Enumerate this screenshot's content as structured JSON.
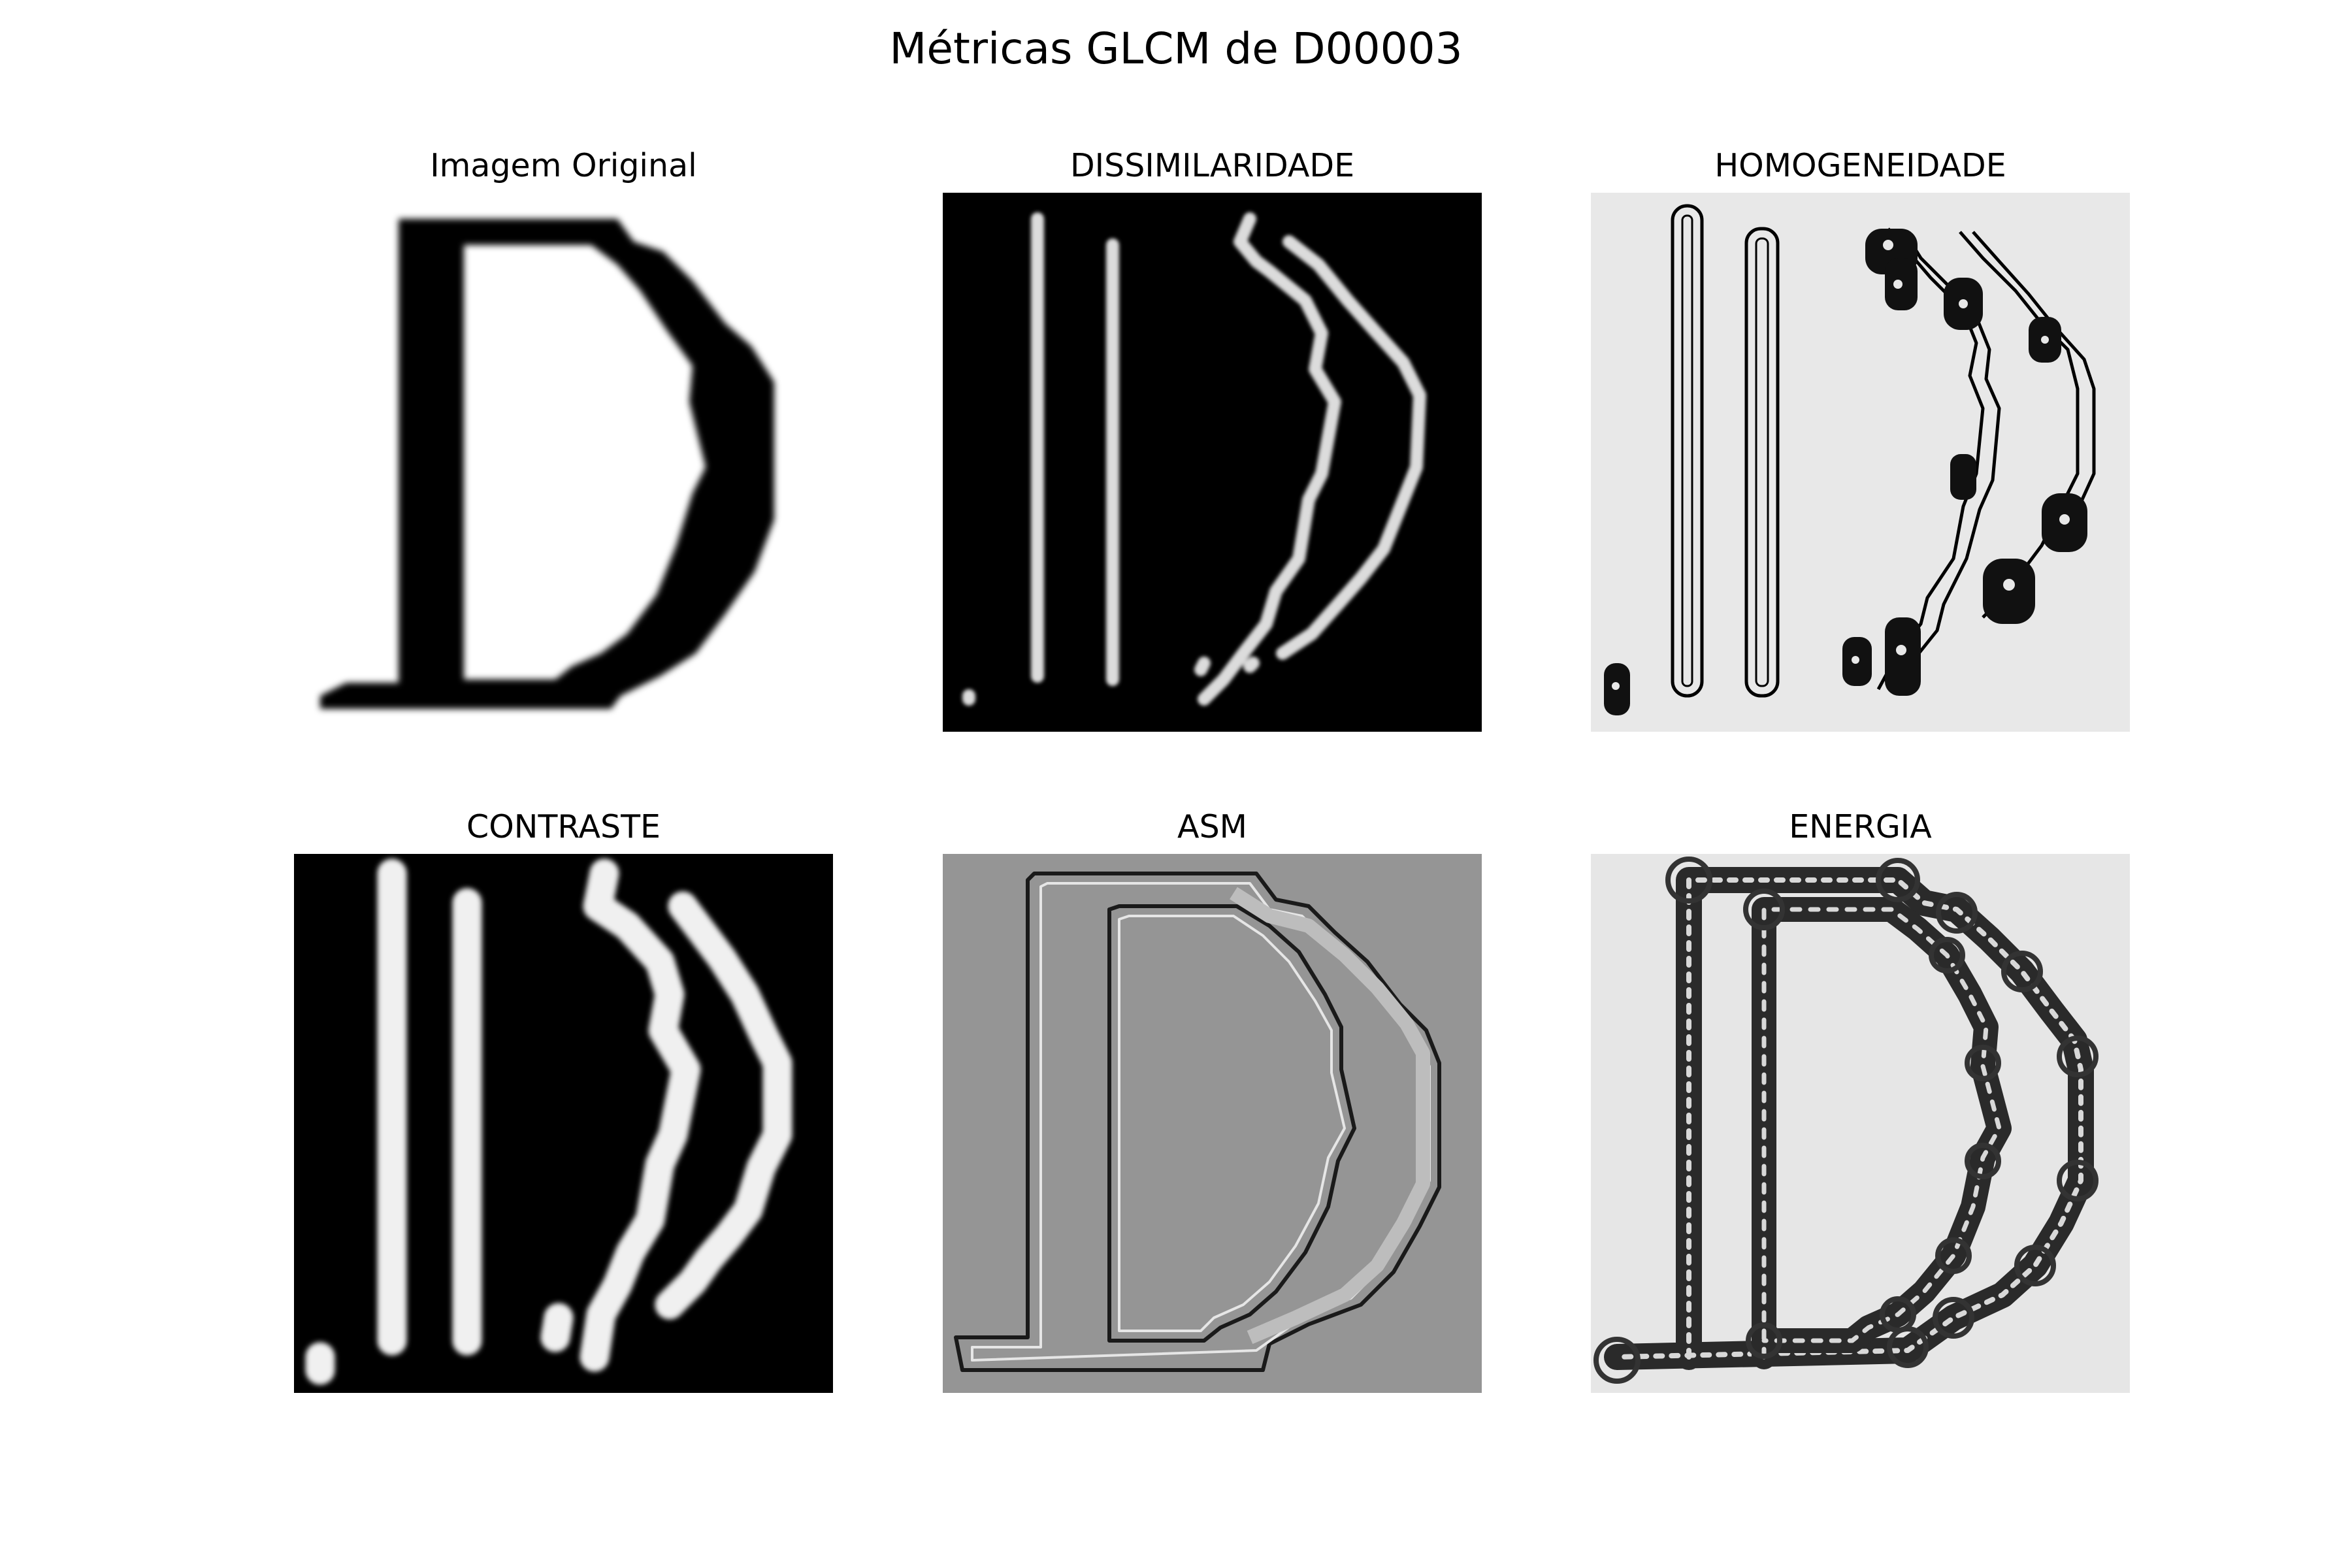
{
  "figure": {
    "title": "Métricas GLCM de D00003"
  },
  "panels": [
    {
      "title": "Imagem Original"
    },
    {
      "title": "DISSIMILARIDADE"
    },
    {
      "title": "HOMOGENEIDADE"
    },
    {
      "title": "CONTRASTE"
    },
    {
      "title": "ASM"
    },
    {
      "title": "ENERGIA"
    }
  ],
  "colors": {
    "dissimilaridade_bg": "#000000",
    "homogeneidade_bg": "#e8e8e8",
    "contraste_bg": "#000000",
    "asm_bg": "#959595",
    "energia_bg": "#e6e6e6"
  }
}
